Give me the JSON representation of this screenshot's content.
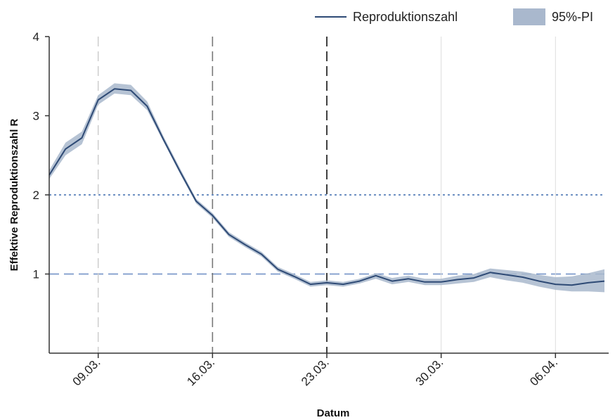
{
  "chart_data": {
    "type": "line",
    "title": "",
    "xlabel": "Datum",
    "ylabel": "Effektive Reproduktionszahl R",
    "x_tick_labels": [
      "09.03.",
      "16.03.",
      "23.03.",
      "30.03.",
      "06.04."
    ],
    "y_tick_labels": [
      "1",
      "2",
      "3",
      "4"
    ],
    "ylim": [
      0,
      4
    ],
    "xlim": [
      "2020-03-06",
      "2020-04-09"
    ],
    "legend": {
      "position": "top-right",
      "line_label": "Reproduktionszahl",
      "band_label": "95%-PI"
    },
    "x": [
      "2020-03-06",
      "2020-03-07",
      "2020-03-08",
      "2020-03-09",
      "2020-03-10",
      "2020-03-11",
      "2020-03-12",
      "2020-03-13",
      "2020-03-14",
      "2020-03-15",
      "2020-03-16",
      "2020-03-17",
      "2020-03-18",
      "2020-03-19",
      "2020-03-20",
      "2020-03-21",
      "2020-03-22",
      "2020-03-23",
      "2020-03-24",
      "2020-03-25",
      "2020-03-26",
      "2020-03-27",
      "2020-03-28",
      "2020-03-29",
      "2020-03-30",
      "2020-03-31",
      "2020-04-01",
      "2020-04-02",
      "2020-04-03",
      "2020-04-04",
      "2020-04-05",
      "2020-04-06",
      "2020-04-07",
      "2020-04-08",
      "2020-04-09"
    ],
    "series": [
      {
        "name": "Reproduktionszahl",
        "values": [
          2.25,
          2.58,
          2.72,
          3.2,
          3.34,
          3.32,
          3.12,
          2.7,
          2.3,
          1.92,
          1.74,
          1.5,
          1.37,
          1.25,
          1.06,
          0.97,
          0.87,
          0.89,
          0.87,
          0.91,
          0.98,
          0.91,
          0.94,
          0.9,
          0.9,
          0.93,
          0.95,
          1.02,
          0.99,
          0.96,
          0.91,
          0.87,
          0.86,
          0.89,
          0.91
        ],
        "lower": [
          2.2,
          2.5,
          2.64,
          3.14,
          3.28,
          3.26,
          3.07,
          2.67,
          2.27,
          1.89,
          1.71,
          1.47,
          1.34,
          1.22,
          1.03,
          0.94,
          0.84,
          0.86,
          0.84,
          0.88,
          0.94,
          0.87,
          0.9,
          0.86,
          0.86,
          0.88,
          0.9,
          0.96,
          0.92,
          0.89,
          0.84,
          0.8,
          0.78,
          0.78,
          0.77
        ],
        "upper": [
          2.31,
          2.66,
          2.8,
          3.26,
          3.41,
          3.39,
          3.18,
          2.74,
          2.34,
          1.95,
          1.77,
          1.53,
          1.4,
          1.28,
          1.09,
          1.0,
          0.9,
          0.92,
          0.9,
          0.94,
          1.01,
          0.95,
          0.98,
          0.94,
          0.94,
          0.98,
          1.0,
          1.07,
          1.05,
          1.03,
          0.99,
          0.96,
          0.97,
          1.01,
          1.06
        ]
      }
    ],
    "reference_lines": [
      {
        "axis": "y",
        "value": 2,
        "style": "dotted",
        "color": "#3f6cae"
      },
      {
        "axis": "y",
        "value": 1,
        "style": "dashed",
        "color": "#6a8cc4"
      },
      {
        "axis": "x",
        "value": "2020-03-09",
        "style": "dashed",
        "color": "#cfcfcf"
      },
      {
        "axis": "x",
        "value": "2020-03-16",
        "style": "dashed",
        "color": "#777777"
      },
      {
        "axis": "x",
        "value": "2020-03-23",
        "style": "dashed",
        "color": "#111111"
      },
      {
        "axis": "x",
        "value": "2020-03-30",
        "style": "solid",
        "color": "#dddddd"
      },
      {
        "axis": "x",
        "value": "2020-04-06",
        "style": "solid",
        "color": "#dddddd"
      }
    ],
    "colors": {
      "line": "#2e4a75",
      "band": "#a9b8cd"
    },
    "grid": false
  }
}
